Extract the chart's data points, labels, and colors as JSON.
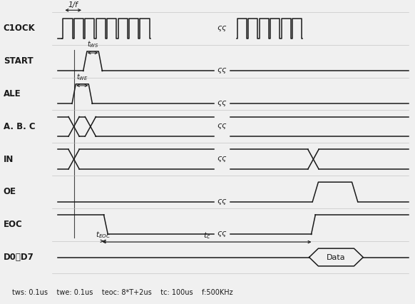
{
  "bg_color": "#f0f0f0",
  "signal_color": "#1a1a1a",
  "fig_width": 5.82,
  "fig_height": 4.26,
  "footer": "tws: 0.1us    twe: 0.1us    teoc: 8*T+2us    tc: 100us    f:500KHz",
  "clock_label": "C1OCK",
  "signal_labels": [
    "C1OCK",
    "START",
    "ALE",
    "A. B. C",
    "IN",
    "OE",
    "EOC",
    "D0〞D7"
  ]
}
